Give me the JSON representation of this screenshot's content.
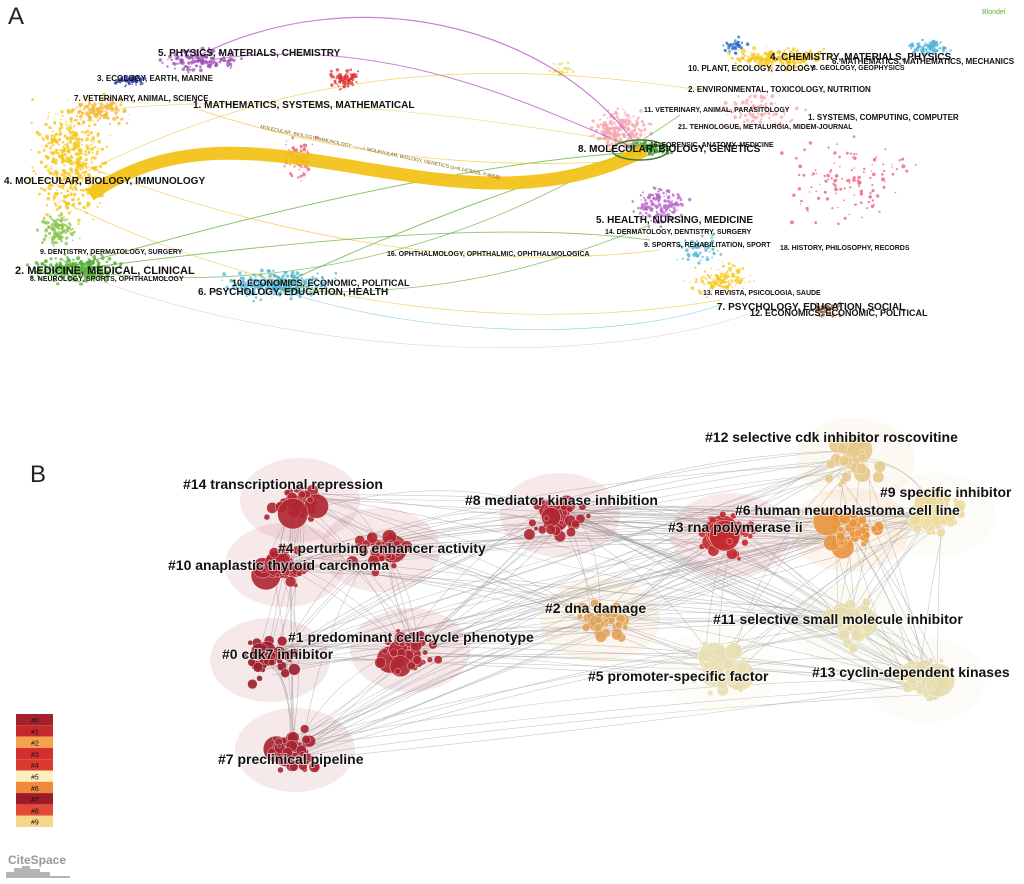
{
  "panel_a": {
    "letter": "A",
    "method": "Blondel",
    "ribbon_label": "MOLECULAR, BIOLOGY, IMMUNOLOGY ——> MOLECULAR, BIOLOGY, GENETICS (z=8.1479225, f=4659)",
    "left_labels": [
      "5. PHYSICS, MATERIALS, CHEMISTRY",
      "3. ECOLOGY, EARTH, MARINE",
      "7. VETERINARY, ANIMAL, SCIENCE",
      "1. MATHEMATICS, SYSTEMS, MATHEMATICAL",
      "4. MOLECULAR, BIOLOGY, IMMUNOLOGY",
      "9. DENTISTRY, DERMATOLOGY, SURGERY",
      "2. MEDICINE, MEDICAL, CLINICAL",
      "8. NEUROLOGY, SPORTS, OPHTHALMOLOGY",
      "10. ECONOMICS, ECONOMIC, POLITICAL",
      "6. PSYCHOLOGY, EDUCATION, HEALTH"
    ],
    "right_labels": [
      "4. CHEMISTRY, MATERIALS, PHYSICS",
      "10. PLANT, ECOLOGY, ZOOLOGY",
      "3. GEOLOGY, GEOPHYSICS",
      "6. MATHEMATICS, MATHEMATICS, MECHANICS",
      "2. ENVIRONMENTAL, TOXICOLOGY, NUTRITION",
      "11. VETERINARY, ANIMAL, PARASITOLOGY",
      "1. SYSTEMS, COMPUTING, COMPUTER",
      "21. TEHNOLOGUE, METALURGIA, MIDEM-JOURNAL",
      "8. MOLECULAR, BIOLOGY, GENETICS",
      "16. FORENSIC, ANATOMY, MEDICINE",
      "5. HEALTH, NURSING, MEDICINE",
      "14. DERMATOLOGY, DENTISTRY, SURGERY",
      "9. SPORTS, REHABILITATION, SPORT",
      "18. HISTORY, PHILOSOPHY, RECORDS",
      "16. OPHTHALMOLOGY, OPHTHALMIC, OPHTHALMOLOGICA",
      "13. REVISTA, PSICOLOGIA, SAUDE",
      "7. PSYCHOLOGY, EDUCATION, SOCIAL",
      "12. ECONOMICS, ECONOMIC, POLITICAL"
    ]
  },
  "panel_b": {
    "letter": "B",
    "clusters": [
      "#14 transcriptional repression",
      "#8 mediator kinase inhibition",
      "#12 selective cdk inhibitor roscovitine",
      "#9 specific inhibitor",
      "#6 human neuroblastoma cell line",
      "#3 rna polymerase ii",
      "#4 perturbing enhancer activity",
      "#10 anaplastic thyroid carcinoma",
      "#2 dna damage",
      "#11 selective small molecule inhibitor",
      "#1 predominant cell-cycle phenotype",
      "#0 cdk7 inhibitor",
      "#5 promoter-specific factor",
      "#13 cyclin-dependent kinases",
      "#7 preclinical pipeline"
    ],
    "legend": [
      {
        "label": "#0",
        "color": "#a3202c"
      },
      {
        "label": "#1",
        "color": "#c42a2c"
      },
      {
        "label": "#2",
        "color": "#f3a34e"
      },
      {
        "label": "#3",
        "color": "#d3302d"
      },
      {
        "label": "#4",
        "color": "#dc3a2f"
      },
      {
        "label": "#5",
        "color": "#fdf0bd"
      },
      {
        "label": "#6",
        "color": "#ef8a3b"
      },
      {
        "label": "#7",
        "color": "#9c1c2c"
      },
      {
        "label": "#8",
        "color": "#e24a37"
      },
      {
        "label": "#9",
        "color": "#f6d68a"
      }
    ],
    "logo": "CiteSpace"
  }
}
